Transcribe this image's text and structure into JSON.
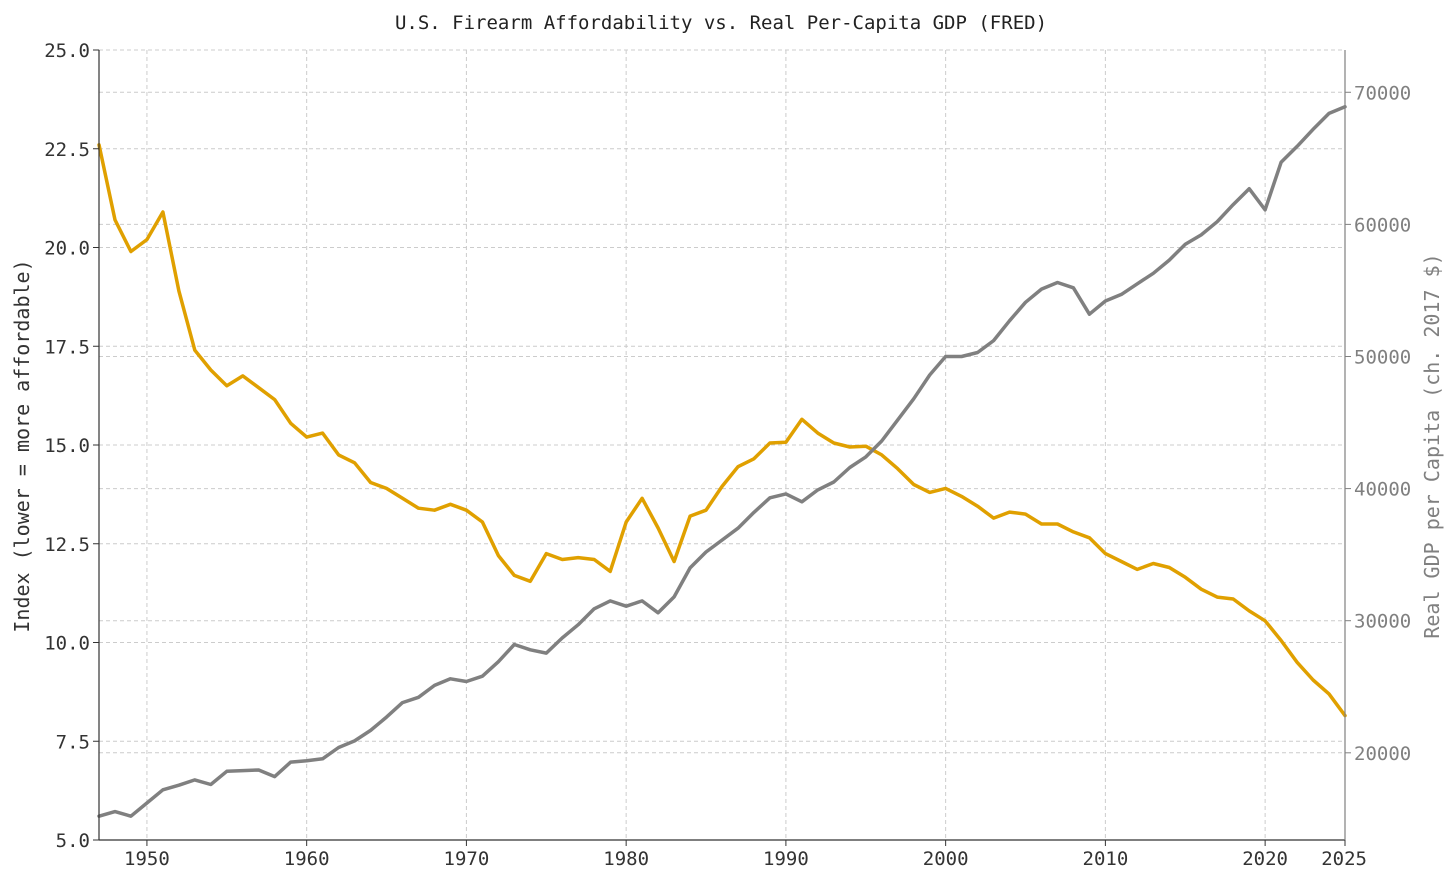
{
  "chart_data": {
    "type": "line",
    "title": "U.S. Firearm Affordability vs. Real Per-Capita GDP (FRED)",
    "xlabel": "",
    "ylabel": "Index (lower = more affordable)",
    "y2label": "Real GDP per Capita (ch. 2017 $)",
    "xlim": [
      1947,
      2025
    ],
    "ylim": [
      5.0,
      25.0
    ],
    "y2lim": [
      13400,
      73200
    ],
    "x_ticks": [
      1950,
      1960,
      1970,
      1980,
      1990,
      2000,
      2010,
      2020,
      2025
    ],
    "y_ticks": [
      "5.0",
      "7.5",
      "10.0",
      "12.5",
      "15.0",
      "17.5",
      "20.0",
      "22.5",
      "25.0"
    ],
    "y2_ticks": [
      "20000",
      "30000",
      "40000",
      "50000",
      "60000",
      "70000"
    ],
    "grid": true,
    "colors": {
      "affordability": "#e0a000",
      "gdp": "#808080",
      "left_axis": "#333333",
      "right_axis": "#808080",
      "grid": "#cccccc"
    },
    "series": [
      {
        "axis": "left",
        "x": [
          1947,
          1948,
          1949,
          1950,
          1951,
          1952,
          1953,
          1954,
          1955,
          1956,
          1957,
          1958,
          1959,
          1960,
          1961,
          1962,
          1963,
          1964,
          1965,
          1966,
          1967,
          1968,
          1969,
          1970,
          1971,
          1972,
          1973,
          1974,
          1975,
          1976,
          1977,
          1978,
          1979,
          1980,
          1981,
          1982,
          1983,
          1984,
          1985,
          1986,
          1987,
          1988,
          1989,
          1990,
          1991,
          1992,
          1993,
          1994,
          1995,
          1996,
          1997,
          1998,
          1999,
          2000,
          2001,
          2002,
          2003,
          2004,
          2005,
          2006,
          2007,
          2008,
          2009,
          2010,
          2011,
          2012,
          2013,
          2014,
          2015,
          2016,
          2017,
          2018,
          2019,
          2020,
          2021,
          2022,
          2023,
          2024,
          2025
        ],
        "values": [
          22.6,
          20.7,
          19.9,
          20.2,
          20.9,
          18.9,
          17.4,
          16.9,
          16.5,
          16.75,
          16.45,
          16.15,
          15.55,
          15.2,
          15.3,
          14.75,
          14.55,
          14.05,
          13.9,
          13.65,
          13.4,
          13.35,
          13.5,
          13.35,
          13.05,
          12.2,
          11.7,
          11.55,
          12.25,
          12.1,
          12.15,
          12.1,
          11.8,
          13.05,
          13.65,
          12.9,
          12.05,
          13.2,
          13.35,
          13.95,
          14.45,
          14.65,
          15.05,
          15.07,
          15.65,
          15.3,
          15.05,
          14.95,
          14.97,
          14.75,
          14.4,
          14.0,
          13.8,
          13.9,
          13.7,
          13.45,
          13.15,
          13.3,
          13.25,
          13.0,
          13.0,
          12.8,
          12.65,
          12.25,
          12.05,
          11.85,
          12.0,
          11.9,
          11.65,
          11.35,
          11.15,
          11.1,
          10.8,
          10.55,
          10.05,
          9.5,
          9.05,
          8.7,
          8.15
        ]
      },
      {
        "axis": "right",
        "x": [
          1947,
          1948,
          1949,
          1950,
          1951,
          1952,
          1953,
          1954,
          1955,
          1956,
          1957,
          1958,
          1959,
          1960,
          1961,
          1962,
          1963,
          1964,
          1965,
          1966,
          1967,
          1968,
          1969,
          1970,
          1971,
          1972,
          1973,
          1974,
          1975,
          1976,
          1977,
          1978,
          1979,
          1980,
          1981,
          1982,
          1983,
          1984,
          1985,
          1986,
          1987,
          1988,
          1989,
          1990,
          1991,
          1992,
          1993,
          1994,
          1995,
          1996,
          1997,
          1998,
          1999,
          2000,
          2001,
          2002,
          2003,
          2004,
          2005,
          2006,
          2007,
          2008,
          2009,
          2010,
          2011,
          2012,
          2013,
          2014,
          2015,
          2016,
          2017,
          2018,
          2019,
          2020,
          2021,
          2022,
          2023,
          2024,
          2025
        ],
        "values": [
          15200,
          15550,
          15200,
          16200,
          17200,
          17550,
          17950,
          17600,
          18600,
          18650,
          18700,
          18200,
          19300,
          19400,
          19550,
          20400,
          20900,
          21700,
          22700,
          23800,
          24200,
          25100,
          25600,
          25400,
          25800,
          26900,
          28200,
          27800,
          27550,
          28700,
          29700,
          30900,
          31500,
          31100,
          31500,
          30600,
          31800,
          34000,
          35200,
          36100,
          37000,
          38200,
          39300,
          39600,
          39000,
          39900,
          40500,
          41600,
          42400,
          43600,
          45200,
          46800,
          48600,
          50000,
          50000,
          50300,
          51200,
          52700,
          54100,
          55100,
          55600,
          55200,
          53200,
          54200,
          54700,
          55500,
          56300,
          57300,
          58500,
          59200,
          60200,
          61500,
          62700,
          61100,
          64700,
          65900,
          67200,
          68400,
          68900
        ]
      }
    ]
  }
}
